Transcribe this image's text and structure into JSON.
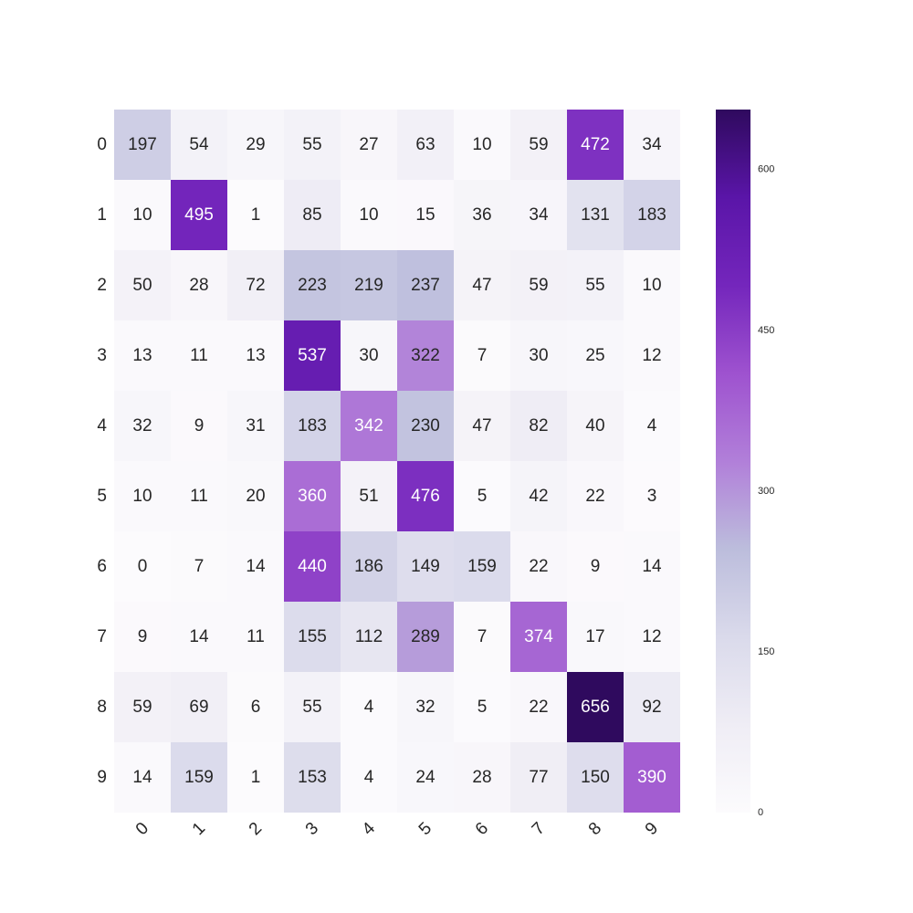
{
  "chart_data": {
    "type": "heatmap",
    "title": "",
    "xlabel": "",
    "ylabel": "",
    "row_labels": [
      "0",
      "1",
      "2",
      "3",
      "4",
      "5",
      "6",
      "7",
      "8",
      "9"
    ],
    "col_labels": [
      "0",
      "1",
      "2",
      "3",
      "4",
      "5",
      "6",
      "7",
      "8",
      "9"
    ],
    "values": [
      [
        197,
        54,
        29,
        55,
        27,
        63,
        10,
        59,
        472,
        34
      ],
      [
        10,
        495,
        1,
        85,
        10,
        15,
        36,
        34,
        131,
        183
      ],
      [
        50,
        28,
        72,
        223,
        219,
        237,
        47,
        59,
        55,
        10
      ],
      [
        13,
        11,
        13,
        537,
        30,
        322,
        7,
        30,
        25,
        12
      ],
      [
        32,
        9,
        31,
        183,
        342,
        230,
        47,
        82,
        40,
        4
      ],
      [
        10,
        11,
        20,
        360,
        51,
        476,
        5,
        42,
        22,
        3
      ],
      [
        0,
        7,
        14,
        440,
        186,
        149,
        159,
        22,
        9,
        14
      ],
      [
        9,
        14,
        11,
        155,
        112,
        289,
        7,
        374,
        17,
        12
      ],
      [
        59,
        69,
        6,
        55,
        4,
        32,
        5,
        22,
        656,
        92
      ],
      [
        14,
        159,
        1,
        153,
        4,
        24,
        28,
        77,
        150,
        390
      ]
    ],
    "colormap": "Purples",
    "color_stops": [
      "#fcfbfd",
      "#efedf5",
      "#dadaeb",
      "#bcbddc",
      "#b17fd9",
      "#9e52cf",
      "#7426bc",
      "#5a15a8",
      "#2f0a5e"
    ],
    "vmin": 0,
    "vmax": 656,
    "colorbar": {
      "ticks": [
        0,
        150,
        300,
        450,
        600
      ],
      "tick_labels": [
        "0",
        "150",
        "300",
        "450",
        "600"
      ],
      "placement": "right"
    },
    "x_tick_rotation": "diagonal",
    "light_text_color": "#ffffff",
    "dark_text_color": "#262626"
  }
}
